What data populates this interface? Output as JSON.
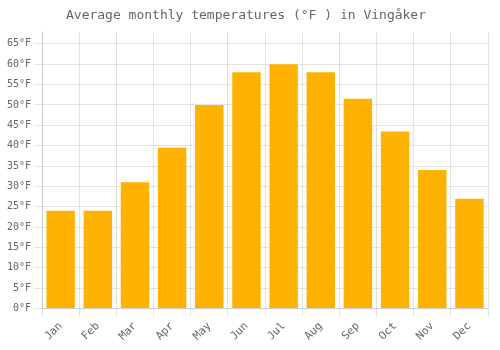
{
  "chart_data": {
    "type": "bar",
    "title": "Average monthly temperatures (°F ) in Vingåker",
    "categories": [
      "Jan",
      "Feb",
      "Mar",
      "Apr",
      "May",
      "Jun",
      "Jul",
      "Aug",
      "Sep",
      "Oct",
      "Nov",
      "Dec"
    ],
    "values": [
      24,
      24,
      31,
      39.5,
      50,
      58,
      60,
      58,
      51.5,
      43.5,
      34,
      27
    ],
    "color": "#FFB300",
    "ylim": [
      0,
      68
    ],
    "yticks": [
      {
        "value": 0,
        "label": "0°F"
      },
      {
        "value": 5,
        "label": "5°F"
      },
      {
        "value": 10,
        "label": "10°F"
      },
      {
        "value": 15,
        "label": "15°F"
      },
      {
        "value": 20,
        "label": "20°F"
      },
      {
        "value": 25,
        "label": "25°F"
      },
      {
        "value": 30,
        "label": "30°F"
      },
      {
        "value": 35,
        "label": "35°F"
      },
      {
        "value": 40,
        "label": "40°F"
      },
      {
        "value": 45,
        "label": "45°F"
      },
      {
        "value": 50,
        "label": "50°F"
      },
      {
        "value": 55,
        "label": "55°F"
      },
      {
        "value": 60,
        "label": "60°F"
      },
      {
        "value": 65,
        "label": "65°F"
      }
    ],
    "grid": true
  }
}
